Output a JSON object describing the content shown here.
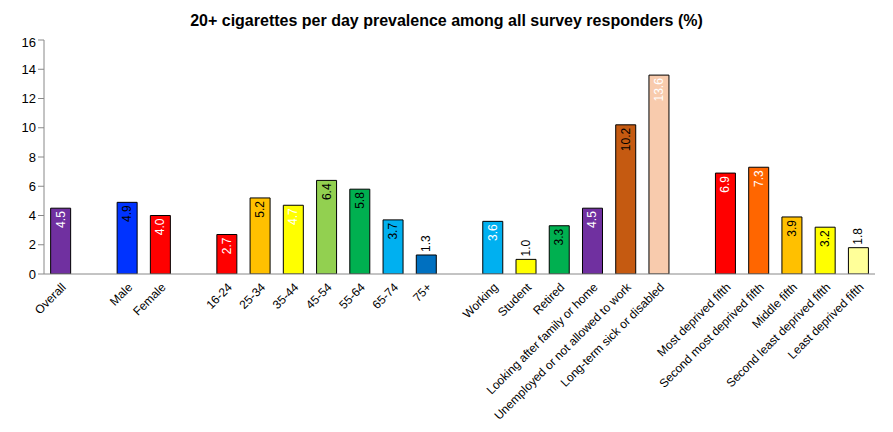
{
  "chart_data": {
    "type": "bar",
    "title": "20+ cigarettes per day prevalence among all survey responders (%)",
    "categories": [
      "Overall",
      null,
      "Male",
      "Female",
      null,
      "16-24",
      "25-34",
      "35-44",
      "45-54",
      "55-64",
      "65-74",
      "75+",
      null,
      "Working",
      "Student",
      "Retired",
      "Looking after family or home",
      "Unemployed or not allowed to work",
      "Long-term sick or disabled",
      null,
      "Most deprived fifth",
      "Second most deprived fifth",
      "Middle fifth",
      "Second least deprived fifth",
      "Least deprived fifth"
    ],
    "values": [
      4.5,
      null,
      4.9,
      4.0,
      null,
      2.7,
      5.2,
      4.7,
      6.4,
      5.8,
      3.7,
      1.3,
      null,
      3.6,
      1.0,
      3.3,
      4.5,
      10.2,
      13.6,
      null,
      6.9,
      7.3,
      3.9,
      3.2,
      1.8
    ],
    "value_labels": [
      "4.5",
      null,
      "4.9",
      "4.0",
      null,
      "2.7",
      "5.2",
      "4.7",
      "6.4",
      "5.8",
      "3.7",
      "1.3",
      null,
      "3.6",
      "1.0",
      "3.3",
      "4.5",
      "10.2",
      "13.6",
      null,
      "6.9",
      "7.3",
      "3.9",
      "3.2",
      "1.8"
    ],
    "colors": [
      "#7030a0",
      null,
      "#0033ff",
      "#ff0000",
      null,
      "#ff0000",
      "#ffc000",
      "#ffff00",
      "#92d050",
      "#00b050",
      "#00b0f0",
      "#0070c0",
      null,
      "#00b0f0",
      "#ffff00",
      "#00b050",
      "#7030a0",
      "#c55a11",
      "#f8cbad",
      null,
      "#ff0000",
      "#ff6600",
      "#ffc000",
      "#ffff00",
      "#ffff99"
    ],
    "ylim": [
      0,
      16
    ],
    "yticks": [
      0,
      2,
      4,
      6,
      8,
      10,
      12,
      14,
      16
    ],
    "grid": false,
    "data_labels": true
  }
}
